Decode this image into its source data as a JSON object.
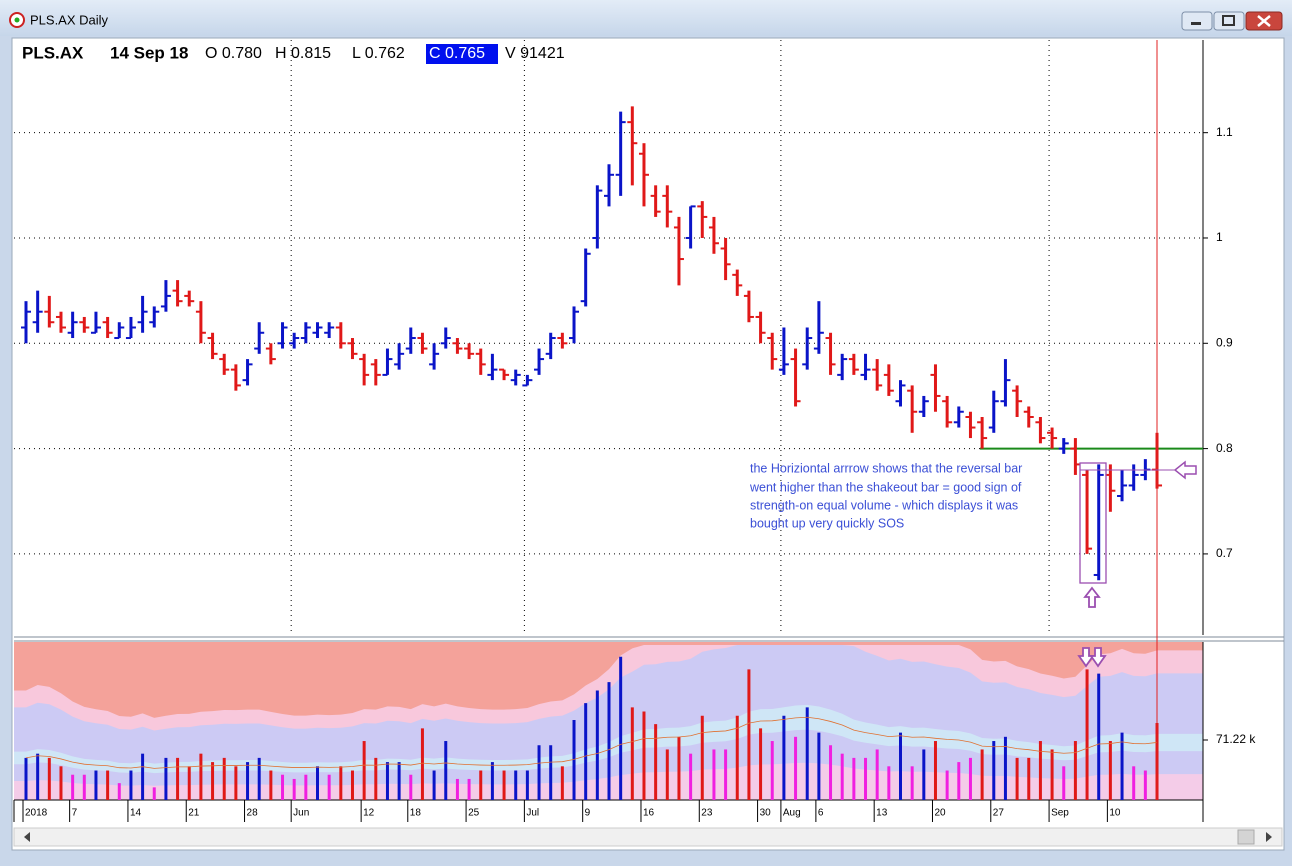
{
  "window": {
    "title": "PLS.AX Daily"
  },
  "chart_data": {
    "type": "ohlc",
    "header": {
      "symbol": "PLS.AX",
      "date": "14 Sep 18",
      "open": "O 0.780",
      "high": "H 0.815",
      "low": "L 0.762",
      "close": "C 0.765",
      "volume": "V 91421"
    },
    "categories": [
      "2018",
      null,
      null,
      null,
      "7",
      null,
      null,
      null,
      null,
      "14",
      null,
      null,
      null,
      null,
      "21",
      null,
      null,
      null,
      null,
      "28",
      null,
      null,
      null,
      "Jun",
      null,
      null,
      null,
      null,
      null,
      "12",
      null,
      null,
      null,
      "18",
      null,
      null,
      null,
      null,
      "25",
      null,
      null,
      null,
      null,
      "Jul",
      null,
      null,
      null,
      null,
      "9",
      null,
      null,
      null,
      null,
      "16",
      null,
      null,
      null,
      null,
      "23",
      null,
      null,
      null,
      null,
      "30",
      null,
      "Aug",
      null,
      null,
      "6",
      null,
      null,
      null,
      null,
      "13",
      null,
      null,
      null,
      null,
      "20",
      null,
      null,
      null,
      null,
      "27",
      null,
      null,
      null,
      null,
      "Sep",
      null,
      null,
      null,
      null,
      "10",
      null,
      null,
      null,
      null
    ],
    "open": [
      0.915,
      0.92,
      0.93,
      0.925,
      0.91,
      0.92,
      0.91,
      0.92,
      0.905,
      0.905,
      0.92,
      0.92,
      0.935,
      0.95,
      0.945,
      0.93,
      0.905,
      0.885,
      0.875,
      0.865,
      0.895,
      0.895,
      0.9,
      0.9,
      0.905,
      0.91,
      0.91,
      0.915,
      0.9,
      0.885,
      0.88,
      0.87,
      0.88,
      0.895,
      0.905,
      0.88,
      0.9,
      0.9,
      0.895,
      0.89,
      0.87,
      0.875,
      0.865,
      0.86,
      0.875,
      0.89,
      0.905,
      0.905,
      0.94,
      1.0,
      1.04,
      1.06,
      1.11,
      1.08,
      1.04,
      1.04,
      1.01,
      1.0,
      1.03,
      1.01,
      0.99,
      0.965,
      0.945,
      0.925,
      0.905,
      0.875,
      0.885,
      0.88,
      0.895,
      0.905,
      0.87,
      0.885,
      0.87,
      0.875,
      0.87,
      0.845,
      0.855,
      0.835,
      0.87,
      0.845,
      0.825,
      0.83,
      0.825,
      0.82,
      0.845,
      0.855,
      0.835,
      0.825,
      0.815,
      0.8,
      0.8,
      0.775,
      0.68,
      0.775,
      0.755,
      0.765,
      0.775,
      0.78
    ],
    "high": [
      0.94,
      0.95,
      0.945,
      0.93,
      0.93,
      0.925,
      0.93,
      0.925,
      0.92,
      0.925,
      0.945,
      0.935,
      0.96,
      0.96,
      0.95,
      0.94,
      0.91,
      0.89,
      0.88,
      0.885,
      0.92,
      0.9,
      0.92,
      0.91,
      0.92,
      0.92,
      0.92,
      0.92,
      0.905,
      0.89,
      0.885,
      0.895,
      0.9,
      0.915,
      0.91,
      0.9,
      0.915,
      0.905,
      0.9,
      0.895,
      0.89,
      0.875,
      0.875,
      0.87,
      0.895,
      0.91,
      0.91,
      0.935,
      0.99,
      1.05,
      1.07,
      1.12,
      1.125,
      1.09,
      1.05,
      1.05,
      1.02,
      1.03,
      1.035,
      1.02,
      1.0,
      0.97,
      0.95,
      0.93,
      0.91,
      0.915,
      0.895,
      0.915,
      0.94,
      0.91,
      0.89,
      0.89,
      0.89,
      0.885,
      0.88,
      0.865,
      0.86,
      0.85,
      0.88,
      0.85,
      0.84,
      0.835,
      0.83,
      0.855,
      0.885,
      0.86,
      0.84,
      0.83,
      0.82,
      0.81,
      0.81,
      0.78,
      0.785,
      0.785,
      0.78,
      0.785,
      0.79,
      0.815
    ],
    "low": [
      0.9,
      0.91,
      0.915,
      0.91,
      0.905,
      0.91,
      0.91,
      0.905,
      0.905,
      0.905,
      0.91,
      0.915,
      0.93,
      0.935,
      0.935,
      0.9,
      0.885,
      0.87,
      0.855,
      0.86,
      0.89,
      0.88,
      0.895,
      0.895,
      0.9,
      0.905,
      0.905,
      0.895,
      0.885,
      0.86,
      0.86,
      0.87,
      0.875,
      0.89,
      0.89,
      0.875,
      0.895,
      0.89,
      0.885,
      0.87,
      0.865,
      0.865,
      0.86,
      0.86,
      0.87,
      0.885,
      0.895,
      0.9,
      0.935,
      0.99,
      1.03,
      1.04,
      1.05,
      1.03,
      1.02,
      1.01,
      0.955,
      0.99,
      1.0,
      0.985,
      0.96,
      0.945,
      0.92,
      0.9,
      0.875,
      0.87,
      0.84,
      0.875,
      0.89,
      0.87,
      0.865,
      0.87,
      0.865,
      0.855,
      0.85,
      0.84,
      0.815,
      0.83,
      0.835,
      0.82,
      0.82,
      0.81,
      0.8,
      0.815,
      0.84,
      0.83,
      0.82,
      0.805,
      0.8,
      0.795,
      0.775,
      0.7,
      0.675,
      0.74,
      0.75,
      0.76,
      0.77,
      0.762
    ],
    "close": [
      0.93,
      0.93,
      0.92,
      0.915,
      0.92,
      0.915,
      0.915,
      0.91,
      0.915,
      0.915,
      0.93,
      0.93,
      0.945,
      0.94,
      0.94,
      0.91,
      0.89,
      0.875,
      0.86,
      0.88,
      0.91,
      0.885,
      0.915,
      0.905,
      0.915,
      0.915,
      0.915,
      0.9,
      0.89,
      0.87,
      0.87,
      0.885,
      0.89,
      0.905,
      0.895,
      0.89,
      0.905,
      0.895,
      0.89,
      0.88,
      0.875,
      0.87,
      0.87,
      0.865,
      0.885,
      0.905,
      0.9,
      0.93,
      0.985,
      1.045,
      1.06,
      1.11,
      1.09,
      1.06,
      1.025,
      1.025,
      0.98,
      1.03,
      1.02,
      0.995,
      0.975,
      0.955,
      0.925,
      0.91,
      0.885,
      0.88,
      0.845,
      0.905,
      0.91,
      0.88,
      0.885,
      0.875,
      0.875,
      0.86,
      0.855,
      0.86,
      0.835,
      0.845,
      0.85,
      0.825,
      0.835,
      0.82,
      0.81,
      0.845,
      0.865,
      0.845,
      0.83,
      0.81,
      0.81,
      0.805,
      0.785,
      0.705,
      0.775,
      0.76,
      0.765,
      0.775,
      0.78,
      0.765
    ],
    "volume": [
      50000,
      55000,
      50000,
      40000,
      30000,
      30000,
      35000,
      35000,
      20000,
      35000,
      55000,
      15000,
      50000,
      50000,
      40000,
      55000,
      45000,
      50000,
      40000,
      45000,
      50000,
      35000,
      30000,
      25000,
      30000,
      40000,
      30000,
      40000,
      35000,
      70000,
      50000,
      45000,
      45000,
      30000,
      85000,
      35000,
      70000,
      25000,
      25000,
      35000,
      45000,
      35000,
      35000,
      35000,
      65000,
      65000,
      40000,
      95000,
      115000,
      130000,
      140000,
      170000,
      110000,
      105000,
      90000,
      60000,
      75000,
      55000,
      100000,
      60000,
      60000,
      100000,
      155000,
      85000,
      70000,
      100000,
      75000,
      110000,
      80000,
      65000,
      55000,
      50000,
      50000,
      60000,
      40000,
      80000,
      40000,
      60000,
      70000,
      35000,
      45000,
      50000,
      60000,
      70000,
      75000,
      50000,
      50000,
      70000,
      60000,
      40000,
      70000,
      155000,
      150000,
      70000,
      80000,
      40000,
      35000,
      91421
    ],
    "colors": {
      "up": "#0a14c8",
      "down": "#e01818",
      "low_volume": "#f020e0",
      "average": "#e07030",
      "support": "#1a8a1a"
    },
    "ylim": [
      0.623,
      1.188
    ],
    "yticks": [
      0.7,
      0.8,
      0.9,
      1,
      1.1
    ],
    "volume_ylim": [
      0,
      184000
    ],
    "volume_yticks": [
      {
        "value": 71220,
        "label": "71.22 k"
      }
    ],
    "grid": true,
    "support_level": 0.8,
    "annotation": [
      "the Horiziontal arrrow shows that the reversal bar",
      "went higher than the shakeout bar = good sign of",
      "strength-on equal volume - which displays it was",
      "bought up very quickly SOS"
    ]
  }
}
